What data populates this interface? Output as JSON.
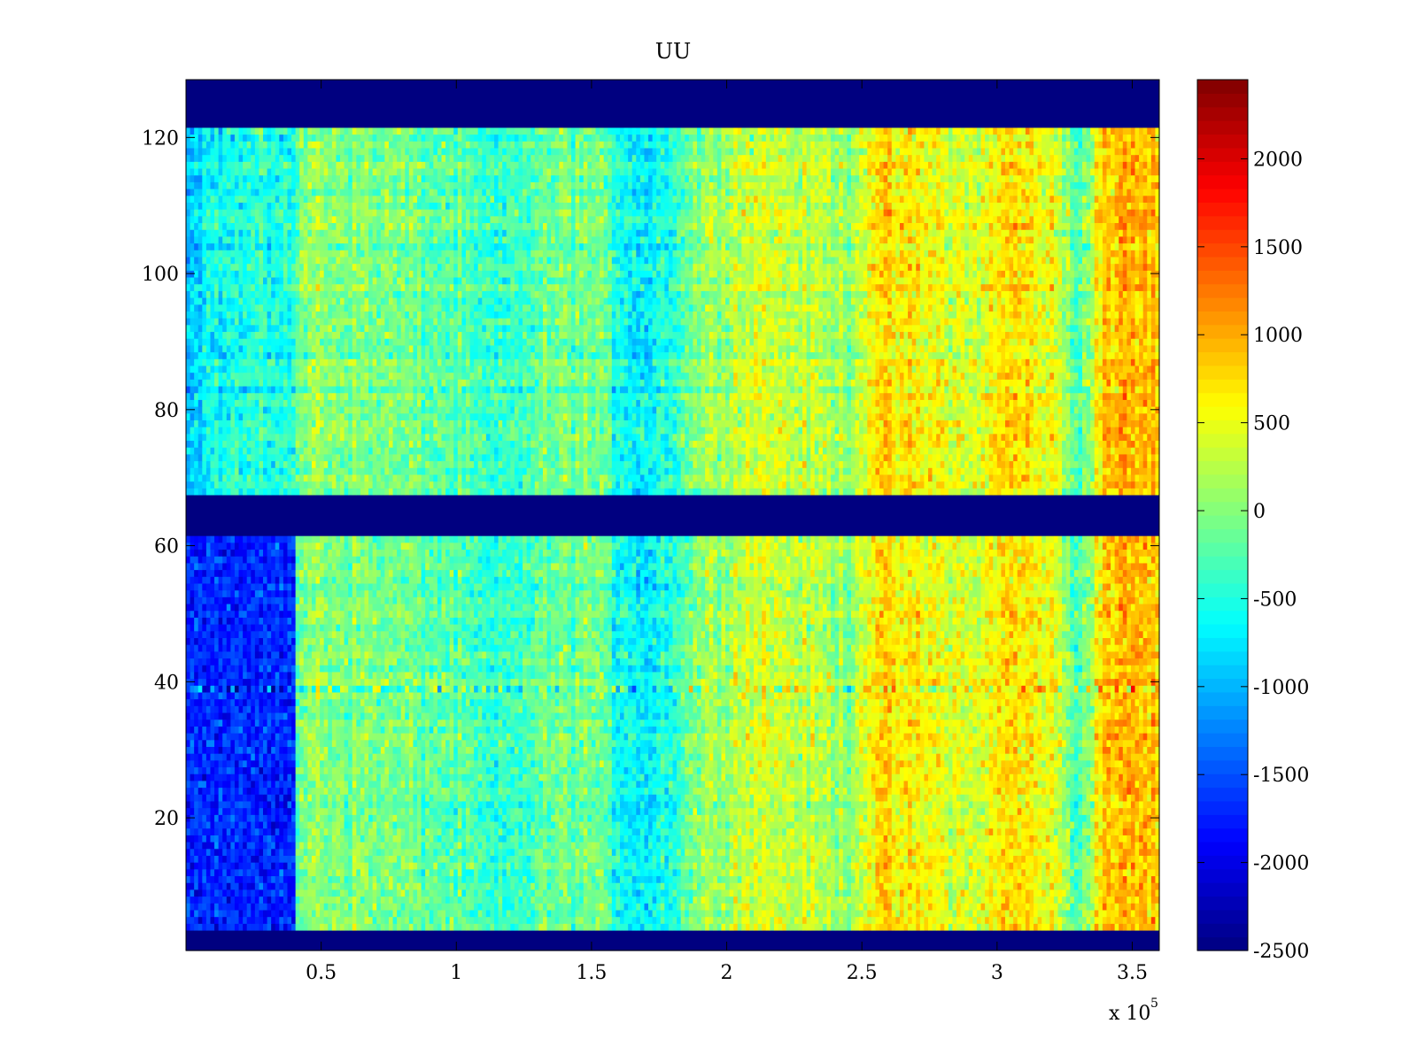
{
  "chart_data": {
    "type": "heatmap",
    "title": "UU",
    "xlabel": "",
    "ylabel": "",
    "x_multiplier_label": "x 10",
    "x_multiplier_exponent": "5",
    "xlim": [
      0,
      360000
    ],
    "ylim": [
      0.5,
      128.5
    ],
    "x_ticks": [
      {
        "value": 50000,
        "label": "0.5"
      },
      {
        "value": 100000,
        "label": "1"
      },
      {
        "value": 150000,
        "label": "1.5"
      },
      {
        "value": 200000,
        "label": "2"
      },
      {
        "value": 250000,
        "label": "2.5"
      },
      {
        "value": 300000,
        "label": "3"
      },
      {
        "value": 350000,
        "label": "3.5"
      }
    ],
    "y_ticks": [
      {
        "value": 20,
        "label": "20"
      },
      {
        "value": 40,
        "label": "40"
      },
      {
        "value": 60,
        "label": "60"
      },
      {
        "value": 80,
        "label": "80"
      },
      {
        "value": 100,
        "label": "100"
      },
      {
        "value": 120,
        "label": "120"
      }
    ],
    "colorbar": {
      "colormap": "jet",
      "min": -2500,
      "max": 2450,
      "ticks": [
        {
          "value": 2000,
          "label": "2000"
        },
        {
          "value": 1500,
          "label": "1500"
        },
        {
          "value": 1000,
          "label": "1000"
        },
        {
          "value": 500,
          "label": "500"
        },
        {
          "value": 0,
          "label": "0"
        },
        {
          "value": -500,
          "label": "-500"
        },
        {
          "value": -1000,
          "label": "-1000"
        },
        {
          "value": -1500,
          "label": "-1500"
        },
        {
          "value": -2000,
          "label": "-2000"
        },
        {
          "value": -2500,
          "label": "-2500"
        }
      ]
    },
    "masked_value": -2500,
    "masked_row_bands": [
      [
        1,
        3
      ],
      [
        62,
        67
      ],
      [
        122,
        128
      ]
    ],
    "column_means": {
      "x": [
        0,
        10000,
        20000,
        30000,
        40000,
        45000,
        60000,
        80000,
        100000,
        115000,
        130000,
        150000,
        160000,
        170000,
        180000,
        190000,
        210000,
        230000,
        245000,
        255000,
        270000,
        290000,
        305000,
        320000,
        330000,
        340000,
        360000
      ],
      "value": [
        -900,
        -600,
        -550,
        -500,
        -450,
        100,
        0,
        -100,
        -250,
        -500,
        -200,
        -50,
        -500,
        -700,
        -400,
        50,
        400,
        250,
        100,
        700,
        600,
        350,
        750,
        500,
        -300,
        900,
        900
      ]
    },
    "low_region": {
      "x_range": [
        0,
        41000
      ],
      "y_range": [
        4,
        61
      ],
      "value": -1700
    },
    "streak_row": {
      "y": 39,
      "amplitude": 900
    }
  }
}
